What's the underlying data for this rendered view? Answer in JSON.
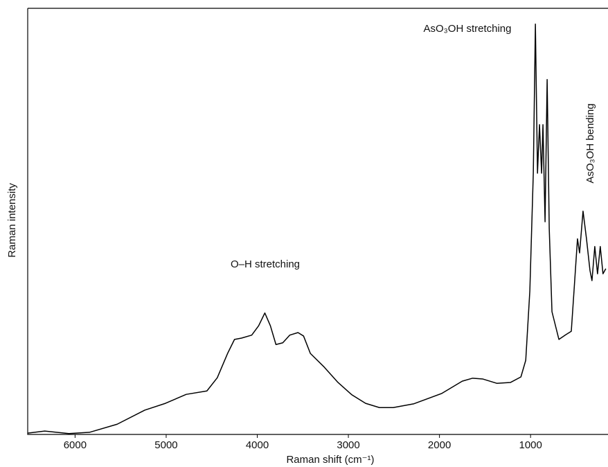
{
  "chart_data": {
    "type": "line",
    "xlabel": "Raman shift (cm⁻¹)",
    "ylabel": "Raman intensity",
    "annotations": [
      "AsO₃OH stretching",
      "O–H stretching",
      "AsO₃OH bending"
    ],
    "color": "#000000",
    "xlim": [
      6520,
      150
    ],
    "xticks": [
      6000,
      5000,
      4000,
      3000,
      2000,
      1000
    ],
    "ylim": [
      0,
      100
    ],
    "x": [
      6520,
      6333,
      6068,
      5841,
      5538,
      5235,
      5008,
      4780,
      4553,
      4439,
      4326,
      4250,
      4174,
      4061,
      3985,
      3917,
      3856,
      3795,
      3720,
      3644,
      3553,
      3492,
      3417,
      3265,
      3114,
      2962,
      2811,
      2659,
      2508,
      2280,
      1977,
      1750,
      1636,
      1523,
      1371,
      1220,
      1106,
      1053,
      1008,
      970,
      947,
      924,
      902,
      879,
      864,
      841,
      818,
      795,
      765,
      689,
      614,
      553,
      523,
      485,
      462,
      424,
      386,
      348,
      326,
      295,
      265,
      235,
      205,
      174
    ],
    "values": [
      0.3,
      0.8,
      0.2,
      0.5,
      2.4,
      5.7,
      7.3,
      9.4,
      10.2,
      13.3,
      19.0,
      22.3,
      22.6,
      23.3,
      25.5,
      28.5,
      25.5,
      21.1,
      21.5,
      23.3,
      23.9,
      23.1,
      19.0,
      15.8,
      12.2,
      9.3,
      7.3,
      6.3,
      6.3,
      7.2,
      9.6,
      12.5,
      13.2,
      13.0,
      12.0,
      12.2,
      13.5,
      17.4,
      33.7,
      61.3,
      96.3,
      61.3,
      72.7,
      61.3,
      72.7,
      49.9,
      83.3,
      48.3,
      28.8,
      22.3,
      23.4,
      24.2,
      33.7,
      45.9,
      42.6,
      52.4,
      45.9,
      38.5,
      36.1,
      44.1,
      37.7,
      44.1,
      37.7,
      38.9
    ]
  }
}
